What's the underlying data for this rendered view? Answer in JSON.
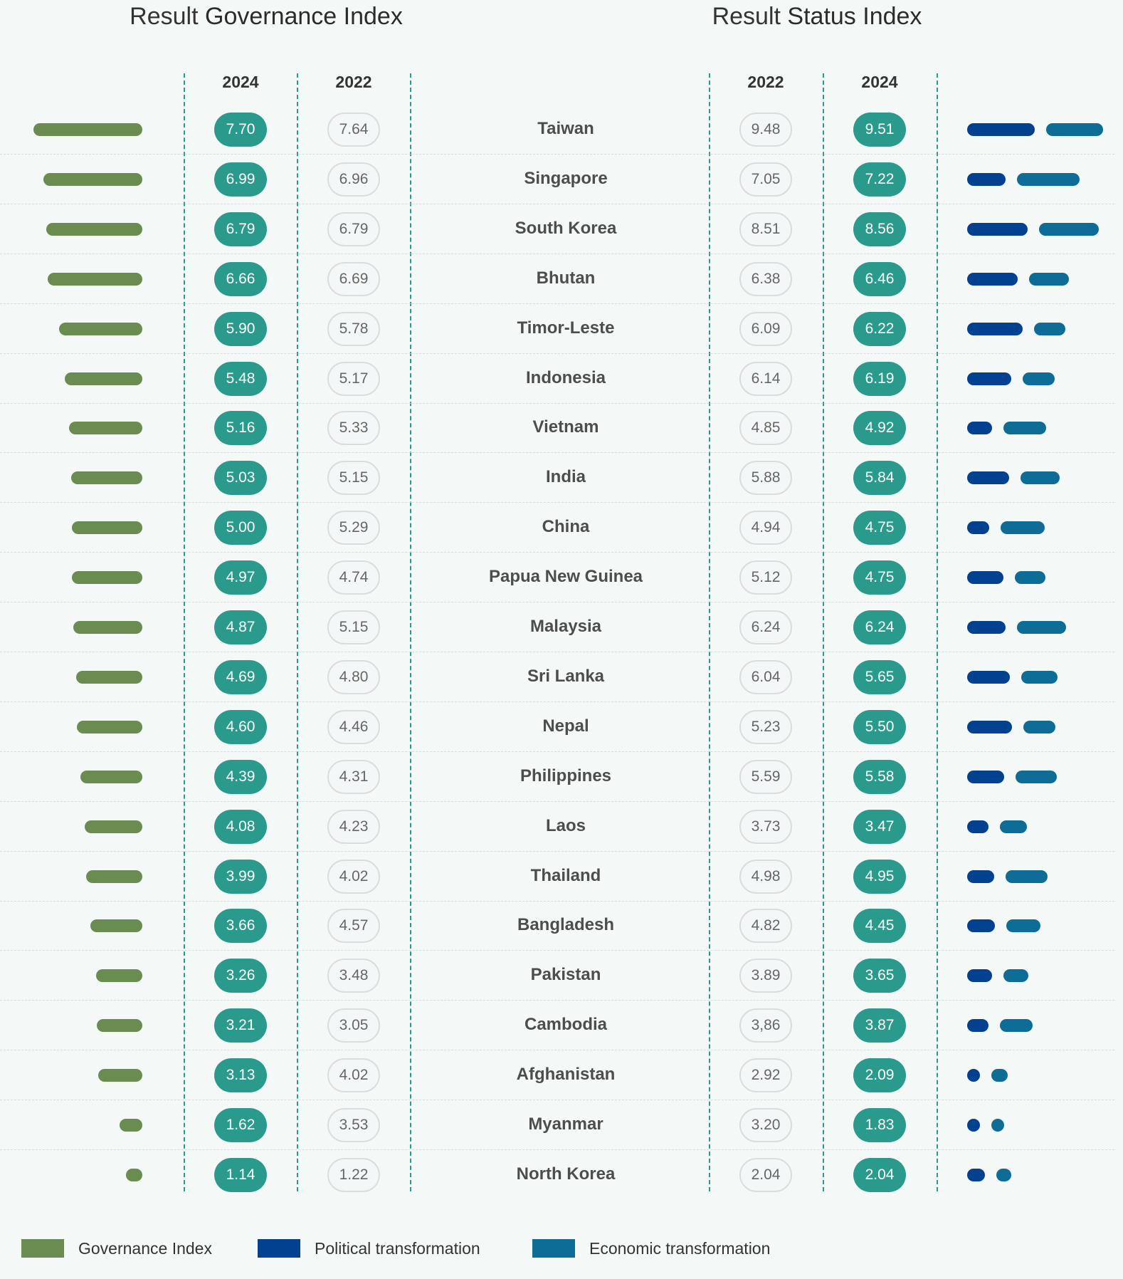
{
  "colors": {
    "governance": "#6a8c50",
    "political": "#02418f",
    "economic": "#0e6d97",
    "pill": "#2a9a8c"
  },
  "chart_data": {
    "type": "table",
    "titles": {
      "governance": {
        "prefix": "Result",
        "main": "Governance Index"
      },
      "status": {
        "prefix": "Result",
        "main": "Status Index"
      }
    },
    "governance_columns": [
      "2024",
      "2022"
    ],
    "status_columns": [
      "2022",
      "2024"
    ],
    "rows": [
      {
        "country": "Taiwan",
        "gov_2024": "7.70",
        "gov_2022": "7.64",
        "status_2022": "9.48",
        "status_2024": "9.51",
        "political": 9.8,
        "economic": 8.2
      },
      {
        "country": "Singapore",
        "gov_2024": "6.99",
        "gov_2022": "6.96",
        "status_2022": "7.05",
        "status_2024": "7.22",
        "political": 5.5,
        "economic": 9.1
      },
      {
        "country": "South Korea",
        "gov_2024": "6.79",
        "gov_2022": "6.79",
        "status_2022": "8.51",
        "status_2024": "8.56",
        "political": 8.7,
        "economic": 8.7
      },
      {
        "country": "Bhutan",
        "gov_2024": "6.66",
        "gov_2022": "6.69",
        "status_2022": "6.38",
        "status_2024": "6.46",
        "political": 7.3,
        "economic": 5.8
      },
      {
        "country": "Timor-Leste",
        "gov_2024": "5.90",
        "gov_2022": "5.78",
        "status_2022": "6.09",
        "status_2024": "6.22",
        "political": 8.0,
        "economic": 4.5
      },
      {
        "country": "Indonesia",
        "gov_2024": "5.48",
        "gov_2022": "5.17",
        "status_2022": "6.14",
        "status_2024": "6.19",
        "political": 6.4,
        "economic": 4.6
      },
      {
        "country": "Vietnam",
        "gov_2024": "5.16",
        "gov_2022": "5.33",
        "status_2022": "4.85",
        "status_2024": "4.92",
        "political": 3.6,
        "economic": 6.2
      },
      {
        "country": "India",
        "gov_2024": "5.03",
        "gov_2022": "5.15",
        "status_2022": "5.88",
        "status_2024": "5.84",
        "political": 6.1,
        "economic": 5.6
      },
      {
        "country": "China",
        "gov_2024": "5.00",
        "gov_2022": "5.29",
        "status_2022": "4.94",
        "status_2024": "4.75",
        "political": 3.2,
        "economic": 6.4
      },
      {
        "country": "Papua New Guinea",
        "gov_2024": "4.97",
        "gov_2022": "4.74",
        "status_2022": "5.12",
        "status_2024": "4.75",
        "political": 5.2,
        "economic": 4.5
      },
      {
        "country": "Malaysia",
        "gov_2024": "4.87",
        "gov_2022": "5.15",
        "status_2022": "6.24",
        "status_2024": "6.24",
        "political": 5.5,
        "economic": 7.1
      },
      {
        "country": "Sri Lanka",
        "gov_2024": "4.69",
        "gov_2022": "4.80",
        "status_2022": "6.04",
        "status_2024": "5.65",
        "political": 6.2,
        "economic": 5.2
      },
      {
        "country": "Nepal",
        "gov_2024": "4.60",
        "gov_2022": "4.46",
        "status_2022": "5.23",
        "status_2024": "5.50",
        "political": 6.5,
        "economic": 4.6
      },
      {
        "country": "Philippines",
        "gov_2024": "4.39",
        "gov_2022": "4.31",
        "status_2022": "5.59",
        "status_2024": "5.58",
        "political": 5.3,
        "economic": 6.0
      },
      {
        "country": "Laos",
        "gov_2024": "4.08",
        "gov_2022": "4.23",
        "status_2022": "3.73",
        "status_2024": "3.47",
        "political": 3.1,
        "economic": 3.9
      },
      {
        "country": "Thailand",
        "gov_2024": "3.99",
        "gov_2022": "4.02",
        "status_2022": "4.98",
        "status_2024": "4.95",
        "political": 3.9,
        "economic": 6.1
      },
      {
        "country": "Bangladesh",
        "gov_2024": "3.66",
        "gov_2022": "4.57",
        "status_2022": "4.82",
        "status_2024": "4.45",
        "political": 4.0,
        "economic": 4.9
      },
      {
        "country": "Pakistan",
        "gov_2024": "3.26",
        "gov_2022": "3.48",
        "status_2022": "3.89",
        "status_2024": "3.65",
        "political": 3.6,
        "economic": 3.6
      },
      {
        "country": "Cambodia",
        "gov_2024": "3.21",
        "gov_2022": "3.05",
        "status_2022": "3,86",
        "status_2024": "3.87",
        "political": 3.1,
        "economic": 4.7
      },
      {
        "country": "Afghanistan",
        "gov_2024": "3.13",
        "gov_2022": "4.02",
        "status_2022": "2.92",
        "status_2024": "2.09",
        "political": 1.8,
        "economic": 2.4
      },
      {
        "country": "Myanmar",
        "gov_2024": "1.62",
        "gov_2022": "3.53",
        "status_2022": "3.20",
        "status_2024": "1.83",
        "political": 1.6,
        "economic": 1.9
      },
      {
        "country": "North Korea",
        "gov_2024": "1.14",
        "gov_2022": "1.22",
        "status_2022": "2.04",
        "status_2024": "2.04",
        "political": 2.6,
        "economic": 2.1
      }
    ],
    "legend": [
      "Governance Index",
      "Political transformation",
      "Economic transformation"
    ]
  }
}
